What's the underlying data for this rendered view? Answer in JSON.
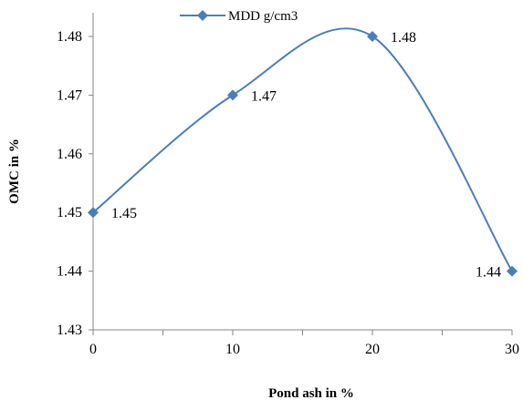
{
  "chart_data": {
    "type": "line",
    "title": "",
    "xlabel": "Pond ash in %",
    "ylabel": "OMC in %",
    "x": [
      0,
      10,
      20,
      30
    ],
    "series": [
      {
        "name": "MDD g/cm3",
        "values": [
          1.45,
          1.47,
          1.48,
          1.44
        ],
        "labels": [
          "1.45",
          "1.47",
          "1.48",
          "1.44"
        ],
        "color": "#4a7ebb",
        "marker": "diamond",
        "smooth": true
      }
    ],
    "xlim": [
      0,
      30
    ],
    "ylim": [
      1.43,
      1.48
    ],
    "xticks": [
      "0",
      "10",
      "20",
      "30"
    ],
    "yticks": [
      "1.43",
      "1.44",
      "1.45",
      "1.46",
      "1.47",
      "1.48"
    ],
    "grid": false,
    "legend_position": "top"
  }
}
